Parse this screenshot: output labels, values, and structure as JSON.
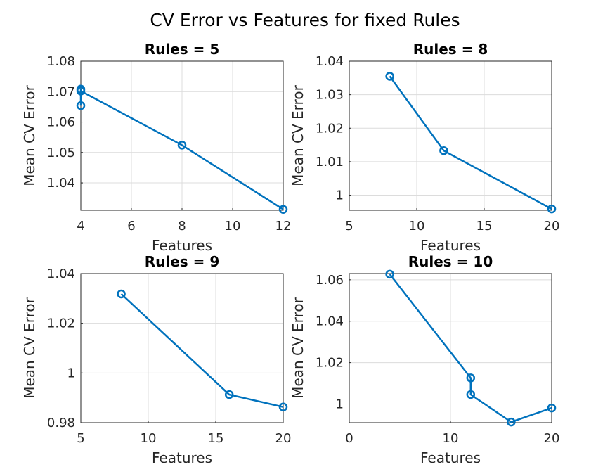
{
  "figure_title": "CV Error vs Features for fixed Rules",
  "colors": {
    "series": "#0072BD",
    "axis": "#262626",
    "grid": "#dcdcdc"
  },
  "chart_data": [
    {
      "type": "line",
      "title": "Rules = 5",
      "xlabel": "Features",
      "ylabel": "Mean CV Error",
      "xlim": [
        4,
        12
      ],
      "ylim": [
        1.031,
        1.08
      ],
      "xticks": [
        4,
        6,
        8,
        10,
        12
      ],
      "yticks": [
        1.04,
        1.05,
        1.06,
        1.07,
        1.08
      ],
      "xtick_labels": [
        "4",
        "6",
        "8",
        "10",
        "12"
      ],
      "ytick_labels": [
        "1.04",
        "1.05",
        "1.06",
        "1.07",
        "1.08"
      ],
      "grid": true,
      "marker": "circle",
      "series": [
        {
          "x": [
            4,
            4,
            4,
            8,
            12
          ],
          "y": [
            1.0654,
            1.0708,
            1.0702,
            1.0524,
            1.0313
          ]
        }
      ]
    },
    {
      "type": "line",
      "title": "Rules = 8",
      "xlabel": "Features",
      "ylabel": "Mean CV Error",
      "xlim": [
        5,
        20
      ],
      "ylim": [
        0.9955,
        1.04
      ],
      "xticks": [
        5,
        10,
        15,
        20
      ],
      "yticks": [
        1,
        1.01,
        1.02,
        1.03,
        1.04
      ],
      "xtick_labels": [
        "5",
        "10",
        "15",
        "20"
      ],
      "ytick_labels": [
        "1",
        "1.01",
        "1.02",
        "1.03",
        "1.04"
      ],
      "grid": true,
      "marker": "circle",
      "series": [
        {
          "x": [
            8,
            12,
            20
          ],
          "y": [
            1.0355,
            1.0133,
            0.9959
          ]
        }
      ]
    },
    {
      "type": "line",
      "title": "Rules = 9",
      "xlabel": "Features",
      "ylabel": "Mean CV Error",
      "xlim": [
        5,
        20
      ],
      "ylim": [
        0.98,
        1.04
      ],
      "xticks": [
        5,
        10,
        15,
        20
      ],
      "yticks": [
        0.98,
        1,
        1.02,
        1.04
      ],
      "xtick_labels": [
        "5",
        "10",
        "15",
        "20"
      ],
      "ytick_labels": [
        "0.98",
        "1",
        "1.02",
        "1.04"
      ],
      "grid": true,
      "marker": "circle",
      "series": [
        {
          "x": [
            8,
            16,
            20
          ],
          "y": [
            1.0318,
            0.9913,
            0.9863
          ]
        }
      ]
    },
    {
      "type": "line",
      "title": "Rules = 10",
      "xlabel": "Features",
      "ylabel": "Mean CV Error",
      "xlim": [
        0,
        20
      ],
      "ylim": [
        0.991,
        1.063
      ],
      "xticks": [
        0,
        10,
        20
      ],
      "yticks": [
        1,
        1.02,
        1.04,
        1.06
      ],
      "xtick_labels": [
        "0",
        "10",
        "20"
      ],
      "ytick_labels": [
        "1",
        "1.02",
        "1.04",
        "1.06"
      ],
      "grid": true,
      "marker": "circle",
      "series": [
        {
          "x": [
            4,
            12,
            12,
            16,
            20
          ],
          "y": [
            1.0627,
            1.0126,
            1.0046,
            0.9913,
            0.9981
          ]
        }
      ]
    }
  ]
}
